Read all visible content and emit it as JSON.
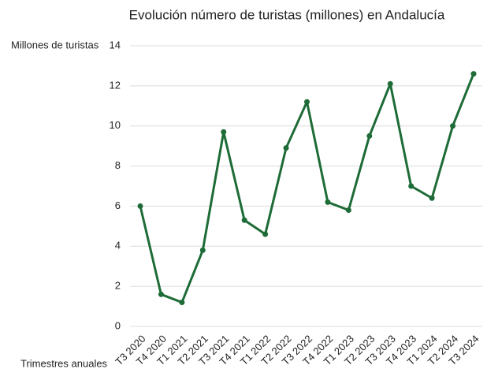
{
  "chart_data": {
    "type": "line",
    "title": "Evolución número de turistas (millones) en Andalucía",
    "y_label": "Millones de turistas",
    "x_label": "Trimestres anuales",
    "categories": [
      "T3 2020",
      "T4 2020",
      "T1 2021",
      "T2 2021",
      "T3 2021",
      "T4 2021",
      "T1 2022",
      "T2 2022",
      "T3 2022",
      "T4 2022",
      "T1 2023",
      "T2 2023",
      "T3 2023",
      "T4 2023",
      "T1 2024",
      "T2 2024",
      "T3 2024"
    ],
    "series": [
      {
        "name": "Millones de turistas",
        "color": "#1d6b36",
        "values": [
          6,
          1.6,
          1.2,
          3.8,
          9.7,
          5.3,
          4.6,
          8.9,
          11.2,
          6.2,
          5.8,
          9.5,
          12.1,
          7.0,
          6.4,
          10.0,
          12.6
        ]
      }
    ],
    "ylim": [
      0,
      14
    ],
    "yticks": [
      0,
      2,
      4,
      6,
      8,
      10,
      12,
      14
    ],
    "grid": true
  }
}
